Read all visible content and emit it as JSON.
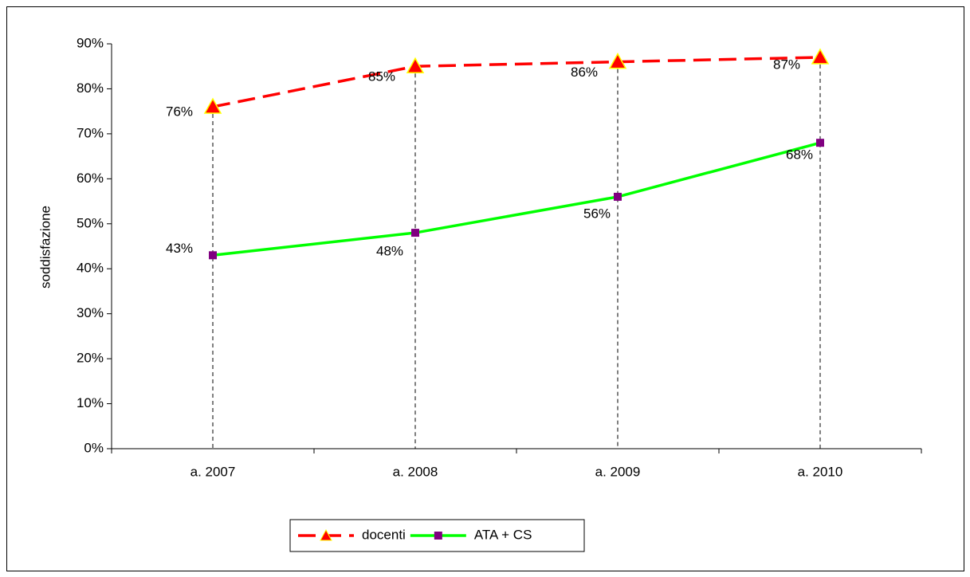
{
  "chart_data": {
    "type": "line",
    "y_label": "soddisfazione",
    "categories": [
      "a. 2007",
      "a. 2008",
      "a. 2009",
      "a. 2010"
    ],
    "series": [
      {
        "name": "docenti",
        "color": "#ff0000",
        "marker_color": "#ff0000",
        "marker_edge": "#ffff00",
        "values": [
          76,
          85,
          86,
          87
        ],
        "value_labels": [
          "76%",
          "85%",
          "86%",
          "87%"
        ]
      },
      {
        "name": "ATA + CS",
        "color": "#00ff00",
        "marker_color": "#800080",
        "values": [
          43,
          48,
          56,
          68
        ],
        "value_labels": [
          "43%",
          "48%",
          "56%",
          "68%"
        ]
      }
    ],
    "ylim": [
      0,
      90
    ],
    "yticks": [
      {
        "value": 0,
        "label": "0%"
      },
      {
        "value": 10,
        "label": "10%"
      },
      {
        "value": 20,
        "label": "20%"
      },
      {
        "value": 30,
        "label": "30%"
      },
      {
        "value": 40,
        "label": "40%"
      },
      {
        "value": 50,
        "label": "50%"
      },
      {
        "value": 60,
        "label": "60%"
      },
      {
        "value": 70,
        "label": "70%"
      },
      {
        "value": 80,
        "label": "80%"
      },
      {
        "value": 90,
        "label": "90%"
      }
    ],
    "grid": false,
    "drop_lines": true,
    "legend": "bottom"
  }
}
